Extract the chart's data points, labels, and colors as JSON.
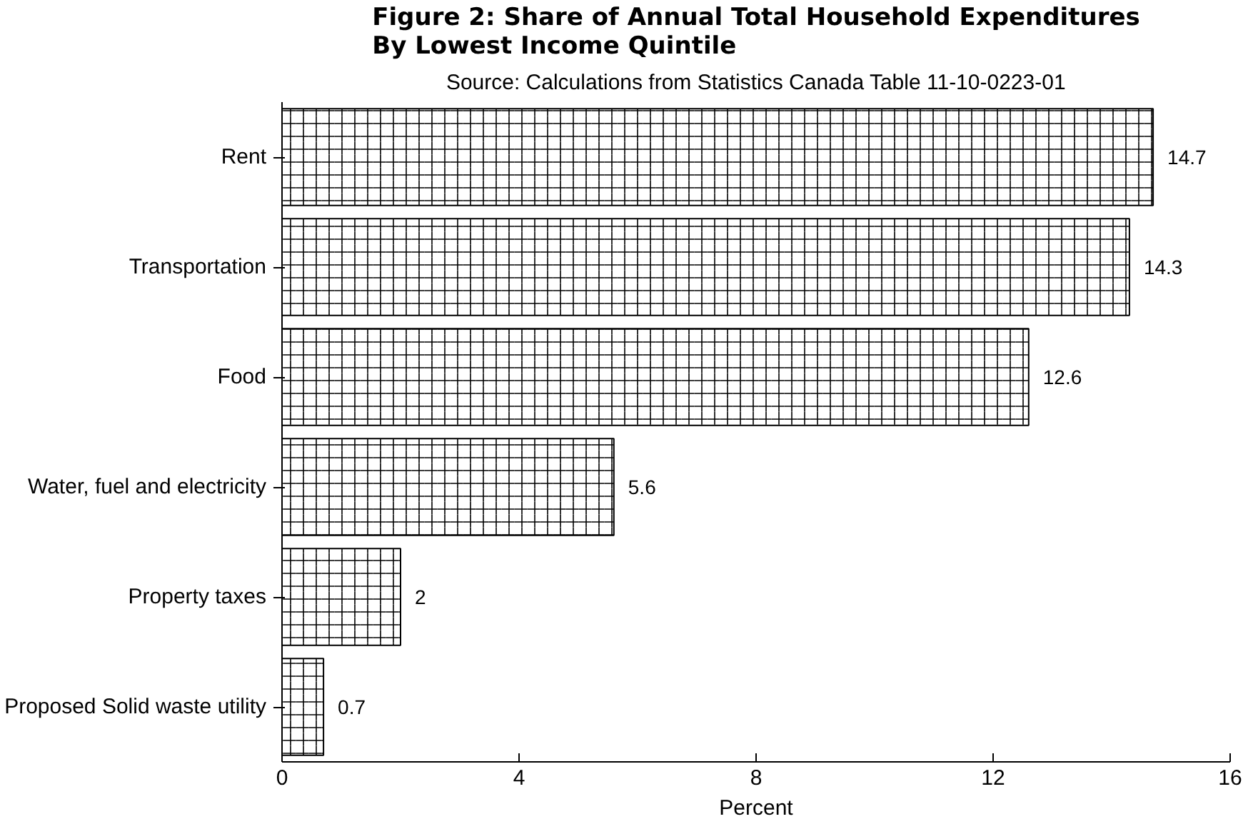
{
  "chart_data": {
    "type": "bar",
    "orientation": "horizontal",
    "title": "Figure 2: Share of Annual Total Household Expenditures\nBy Lowest Income Quintile",
    "subtitle": "Source: Calculations from Statistics Canada Table 11-10-0223-01",
    "xlabel": "Percent",
    "categories": [
      "Rent",
      "Transportation",
      "Food",
      "Water, fuel and electricity",
      "Property taxes",
      "Proposed Solid waste utility"
    ],
    "values": [
      14.7,
      14.3,
      12.6,
      5.6,
      2,
      0.7
    ],
    "color": "#ffffff",
    "xlim": [
      0,
      16
    ],
    "xticks": [
      0,
      4,
      8,
      12,
      16
    ],
    "data_labels": true,
    "grid": false
  }
}
